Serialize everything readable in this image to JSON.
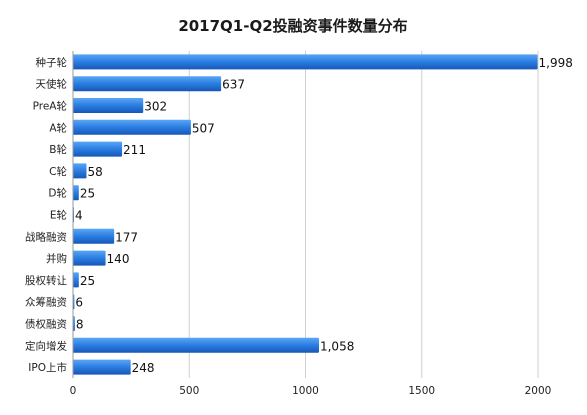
{
  "chart_data": {
    "type": "bar",
    "orientation": "horizontal",
    "title": "2017Q1-Q2投融资事件数量分布",
    "categories": [
      "种子轮",
      "天使轮",
      "PreA轮",
      "A轮",
      "B轮",
      "C轮",
      "D轮",
      "E轮",
      "战略融资",
      "并购",
      "股权转让",
      "众筹融资",
      "债权融资",
      "定向增发",
      "IPO上市"
    ],
    "values": [
      1998,
      637,
      302,
      507,
      211,
      58,
      25,
      4,
      177,
      140,
      25,
      6,
      8,
      1058,
      248
    ],
    "value_labels": [
      "1,998",
      "637",
      "302",
      "507",
      "211",
      "58",
      "25",
      "4",
      "177",
      "140",
      "25",
      "6",
      "8",
      "1,058",
      "248"
    ],
    "x_ticks": [
      "0",
      "500",
      "1000",
      "1500",
      "2000"
    ],
    "xlim": [
      0,
      2150
    ],
    "grid": true,
    "bar_color": "#2a7de1"
  }
}
